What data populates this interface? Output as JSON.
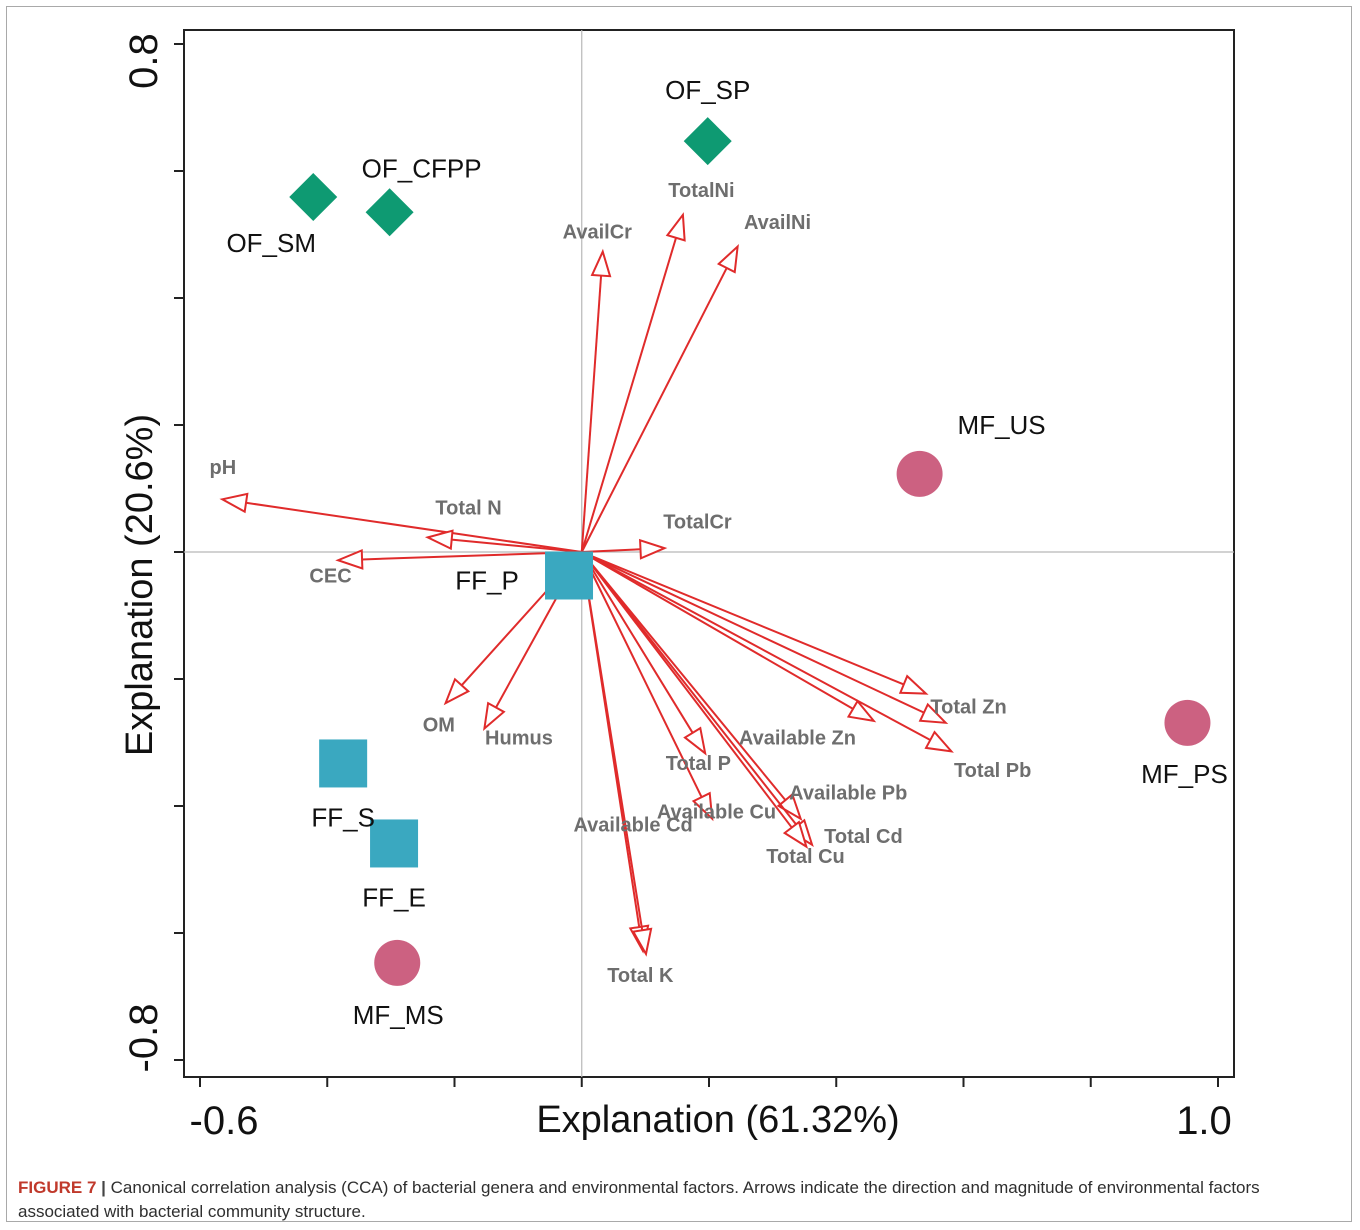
{
  "chart_data": {
    "type": "scatter",
    "title": "",
    "xlabel": "Explanation (61.32%)",
    "ylabel": "Explanation (20.6%)",
    "xlim": [
      -0.6,
      1.0
    ],
    "ylim": [
      -0.8,
      0.8
    ],
    "x_tick_labels": [
      "-0.6",
      "1.0"
    ],
    "y_tick_labels": [
      "-0.8",
      "0.8"
    ],
    "reference_lines": {
      "x": 0,
      "y": 0
    },
    "colors": {
      "OF": "#0e9a72",
      "FF": "#3aa8c0",
      "MF": "#cc6181",
      "arrows": "#e02b2b",
      "arrow_labels": "#6e6e6e"
    },
    "samples": [
      {
        "name": "OF_SP",
        "group": "OF",
        "shape": "diamond",
        "x": 0.198,
        "y": 0.647
      },
      {
        "name": "OF_CFPP",
        "group": "OF",
        "shape": "diamond",
        "x": -0.302,
        "y": 0.535
      },
      {
        "name": "OF_SM",
        "group": "OF",
        "shape": "diamond",
        "x": -0.422,
        "y": 0.559
      },
      {
        "name": "MF_US",
        "group": "MF",
        "shape": "circle",
        "x": 0.531,
        "y": 0.123
      },
      {
        "name": "MF_PS",
        "group": "MF",
        "shape": "circle",
        "x": 0.952,
        "y": -0.269
      },
      {
        "name": "MF_MS",
        "group": "MF",
        "shape": "circle",
        "x": -0.29,
        "y": -0.647
      },
      {
        "name": "FF_P",
        "group": "FF",
        "shape": "square",
        "x": -0.02,
        "y": -0.037
      },
      {
        "name": "FF_S",
        "group": "FF",
        "shape": "square",
        "x": -0.375,
        "y": -0.333
      },
      {
        "name": "FF_E",
        "group": "FF",
        "shape": "square",
        "x": -0.295,
        "y": -0.459
      }
    ],
    "arrows": [
      {
        "name": "pH",
        "x": -0.565,
        "y": 0.083
      },
      {
        "name": "Total N",
        "x": -0.242,
        "y": 0.023
      },
      {
        "name": "CEC",
        "x": -0.383,
        "y": -0.013
      },
      {
        "name": "TotalCr",
        "x": 0.13,
        "y": 0.006
      },
      {
        "name": "AvailCr",
        "x": 0.033,
        "y": 0.473
      },
      {
        "name": "TotalNi",
        "x": 0.159,
        "y": 0.531
      },
      {
        "name": "AvailNi",
        "x": 0.245,
        "y": 0.481
      },
      {
        "name": "OM",
        "x": -0.214,
        "y": -0.238
      },
      {
        "name": "Humus",
        "x": -0.153,
        "y": -0.278
      },
      {
        "name": "Total Zn",
        "x": 0.541,
        "y": -0.223
      },
      {
        "name": "Available Zn",
        "x": 0.459,
        "y": -0.266
      },
      {
        "name": "Total Pb",
        "x": 0.581,
        "y": -0.314
      },
      {
        "name": "Total Zn2",
        "x": 0.572,
        "y": -0.269
      },
      {
        "name": "Total P",
        "x": 0.194,
        "y": -0.317
      },
      {
        "name": "Available Cu",
        "x": 0.205,
        "y": -0.42
      },
      {
        "name": "Available Pb",
        "x": 0.344,
        "y": -0.42
      },
      {
        "name": "Total Cd",
        "x": 0.362,
        "y": -0.461
      },
      {
        "name": "Total Cu",
        "x": 0.353,
        "y": -0.464
      },
      {
        "name": "Available Cd",
        "x": 0.096,
        "y": -0.628
      },
      {
        "name": "Total K",
        "x": 0.101,
        "y": -0.633
      }
    ],
    "arrow_labels": [
      {
        "text": "pH",
        "x": -0.585,
        "y": 0.123
      },
      {
        "text": "Total N",
        "x": -0.23,
        "y": 0.059
      },
      {
        "text": "CEC",
        "x": -0.428,
        "y": -0.048
      },
      {
        "text": "TotalCr",
        "x": 0.128,
        "y": 0.037
      },
      {
        "text": "AvailCr",
        "x": -0.03,
        "y": 0.494
      },
      {
        "text": "TotalNi",
        "x": 0.136,
        "y": 0.559
      },
      {
        "text": "AvailNi",
        "x": 0.255,
        "y": 0.509
      },
      {
        "text": "OM",
        "x": -0.25,
        "y": -0.283
      },
      {
        "text": "Humus",
        "x": -0.152,
        "y": -0.303
      },
      {
        "text": "Total Zn",
        "x": 0.548,
        "y": -0.254
      },
      {
        "text": "Available Zn",
        "x": 0.247,
        "y": -0.303
      },
      {
        "text": "Total Pb",
        "x": 0.585,
        "y": -0.354
      },
      {
        "text": "Total P",
        "x": 0.132,
        "y": -0.343
      },
      {
        "text": "Available Pb",
        "x": 0.326,
        "y": -0.39
      },
      {
        "text": "Available Cu",
        "x": 0.118,
        "y": -0.42
      },
      {
        "text": "Available Cd",
        "x": -0.013,
        "y": -0.44
      },
      {
        "text": "Total Cd",
        "x": 0.381,
        "y": -0.458
      },
      {
        "text": "Total Cu",
        "x": 0.29,
        "y": -0.49
      },
      {
        "text": "Total K",
        "x": 0.04,
        "y": -0.677
      }
    ]
  },
  "caption": {
    "label": "FIGURE 7",
    "separator": " | ",
    "text": "Canonical correlation analysis (CCA) of bacterial genera and environmental factors. Arrows indicate the direction and magnitude of environmental factors associated with bacterial community structure."
  }
}
